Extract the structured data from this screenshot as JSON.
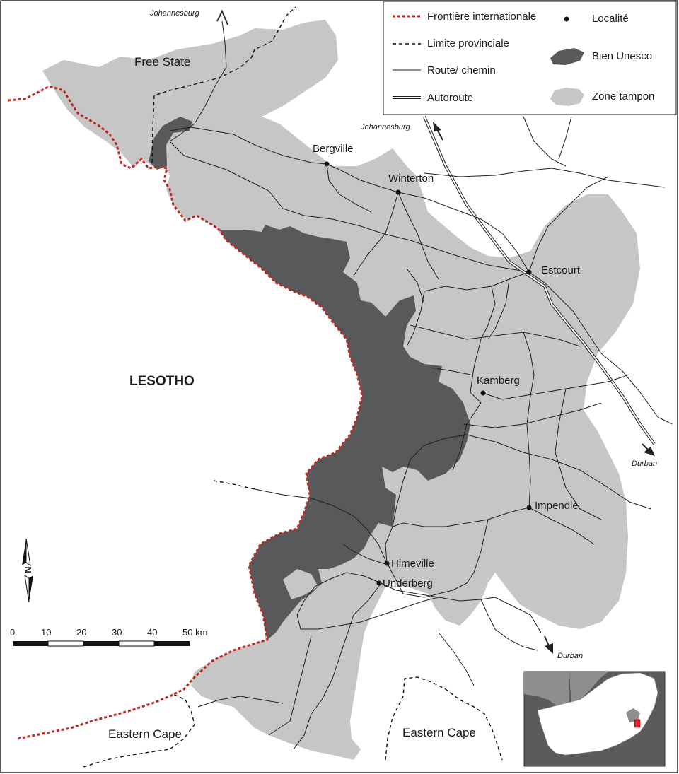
{
  "map": {
    "country_label": "LESOTHO",
    "regions": {
      "free_state": "Free State",
      "eastern_cape_left": "Eastern Cape",
      "eastern_cape_right": "Eastern Cape"
    },
    "places": [
      {
        "id": "bergville",
        "name": "Bergville"
      },
      {
        "id": "winterton",
        "name": "Winterton"
      },
      {
        "id": "estcourt",
        "name": "Estcourt"
      },
      {
        "id": "kamberg",
        "name": "Kamberg"
      },
      {
        "id": "impendle",
        "name": "Impendle"
      },
      {
        "id": "himeville",
        "name": "Himeville"
      },
      {
        "id": "underberg",
        "name": "Underberg"
      }
    ],
    "direction_labels": {
      "johannesburg_top": "Johannesburg",
      "johannesburg_mid": "Johannesburg",
      "durban_right": "Durban",
      "durban_bottom": "Durban"
    }
  },
  "legend": {
    "items": [
      {
        "key": "intl_border",
        "label": "Frontière internationale",
        "color": "#c0281e"
      },
      {
        "key": "prov_limit",
        "label": "Limite provinciale",
        "color": "#111111"
      },
      {
        "key": "road",
        "label": "Route/ chemin",
        "color": "#1e1e1e"
      },
      {
        "key": "highway",
        "label": "Autoroute",
        "color": "#1e1e1e"
      },
      {
        "key": "locality",
        "label": "Localité",
        "color": "#111111"
      },
      {
        "key": "unesco",
        "label": "Bien Unesco",
        "color": "#58595b"
      },
      {
        "key": "buffer",
        "label": "Zone tampon",
        "color": "#c6c6c7"
      }
    ]
  },
  "north_arrow": {
    "letter": "N"
  },
  "scale": {
    "ticks": [
      "0",
      "10",
      "20",
      "30",
      "40",
      "50 km"
    ]
  },
  "colors": {
    "buffer_zone": "#c6c6c7",
    "unesco_property": "#58595b",
    "international_border": "#c0281e",
    "inset_land": "#8f8f8f",
    "inset_highlight": "#e31e24"
  }
}
